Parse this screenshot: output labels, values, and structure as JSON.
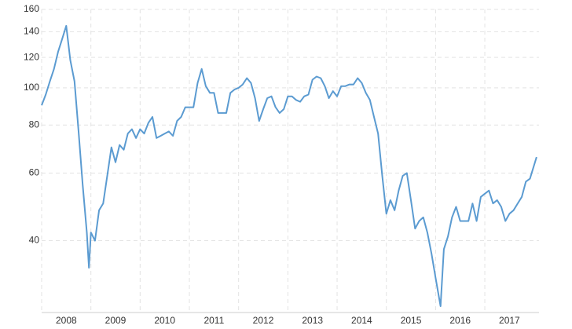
{
  "chart_data": {
    "type": "line",
    "log_scale": true,
    "grid": true,
    "x": [
      2008.0,
      2008.083,
      2008.167,
      2008.25,
      2008.333,
      2008.417,
      2008.5,
      2008.583,
      2008.667,
      2008.75,
      2008.833,
      2008.917,
      2008.96,
      2009.0,
      2009.083,
      2009.167,
      2009.25,
      2009.333,
      2009.417,
      2009.5,
      2009.583,
      2009.667,
      2009.75,
      2009.833,
      2009.917,
      2010.0,
      2010.083,
      2010.167,
      2010.25,
      2010.333,
      2010.417,
      2010.5,
      2010.583,
      2010.667,
      2010.75,
      2010.833,
      2010.917,
      2011.0,
      2011.083,
      2011.167,
      2011.25,
      2011.333,
      2011.417,
      2011.5,
      2011.583,
      2011.667,
      2011.75,
      2011.833,
      2011.917,
      2012.0,
      2012.083,
      2012.167,
      2012.25,
      2012.333,
      2012.417,
      2012.5,
      2012.583,
      2012.667,
      2012.75,
      2012.833,
      2012.917,
      2013.0,
      2013.083,
      2013.167,
      2013.25,
      2013.333,
      2013.417,
      2013.5,
      2013.583,
      2013.667,
      2013.75,
      2013.833,
      2013.917,
      2014.0,
      2014.083,
      2014.167,
      2014.25,
      2014.333,
      2014.417,
      2014.5,
      2014.583,
      2014.667,
      2014.75,
      2014.833,
      2014.917,
      2015.0,
      2015.083,
      2015.167,
      2015.25,
      2015.333,
      2015.417,
      2015.5,
      2015.583,
      2015.667,
      2015.75,
      2015.833,
      2015.917,
      2016.0,
      2016.1,
      2016.167,
      2016.25,
      2016.333,
      2016.417,
      2016.5,
      2016.583,
      2016.667,
      2016.75,
      2016.833,
      2016.917,
      2017.0,
      2017.083,
      2017.167,
      2017.25,
      2017.333,
      2017.417,
      2017.5,
      2017.583,
      2017.667,
      2017.75,
      2017.833,
      2017.917,
      2018.05
    ],
    "series": [
      {
        "color": "#5b9bd1",
        "values": [
          90,
          96,
          104,
          112,
          124,
          134,
          145,
          118,
          104,
          77,
          56,
          42,
          34,
          42,
          40,
          48,
          50,
          59,
          70,
          64,
          71,
          69,
          76,
          78,
          74,
          78,
          76,
          81,
          84,
          74,
          75,
          76,
          77,
          75,
          82,
          84,
          89,
          89,
          89,
          103,
          112,
          101,
          97,
          97,
          86,
          86,
          86,
          97,
          99,
          100,
          102,
          106,
          103,
          94,
          82,
          88,
          94,
          95,
          89,
          86,
          88,
          95,
          95,
          93,
          92,
          95,
          96,
          105,
          107,
          106,
          101,
          94,
          98,
          95,
          101,
          101,
          102,
          102,
          106,
          103,
          97,
          93,
          84,
          76,
          59,
          47,
          51,
          48,
          54,
          59,
          60,
          51,
          43,
          45,
          46,
          42,
          37,
          32,
          27,
          38,
          41,
          46,
          49,
          45,
          45,
          45,
          50,
          45,
          52,
          53,
          54,
          50,
          51,
          49,
          45,
          47,
          48,
          50,
          52,
          57,
          58,
          66
        ]
      }
    ],
    "xlim": [
      2008,
      2018.1
    ],
    "xticks": [
      2008,
      2009,
      2010,
      2011,
      2012,
      2013,
      2014,
      2015,
      2016,
      2017
    ],
    "ylim": [
      26,
      160
    ],
    "yticks": [
      40,
      60,
      80,
      100,
      120,
      140,
      160
    ]
  }
}
